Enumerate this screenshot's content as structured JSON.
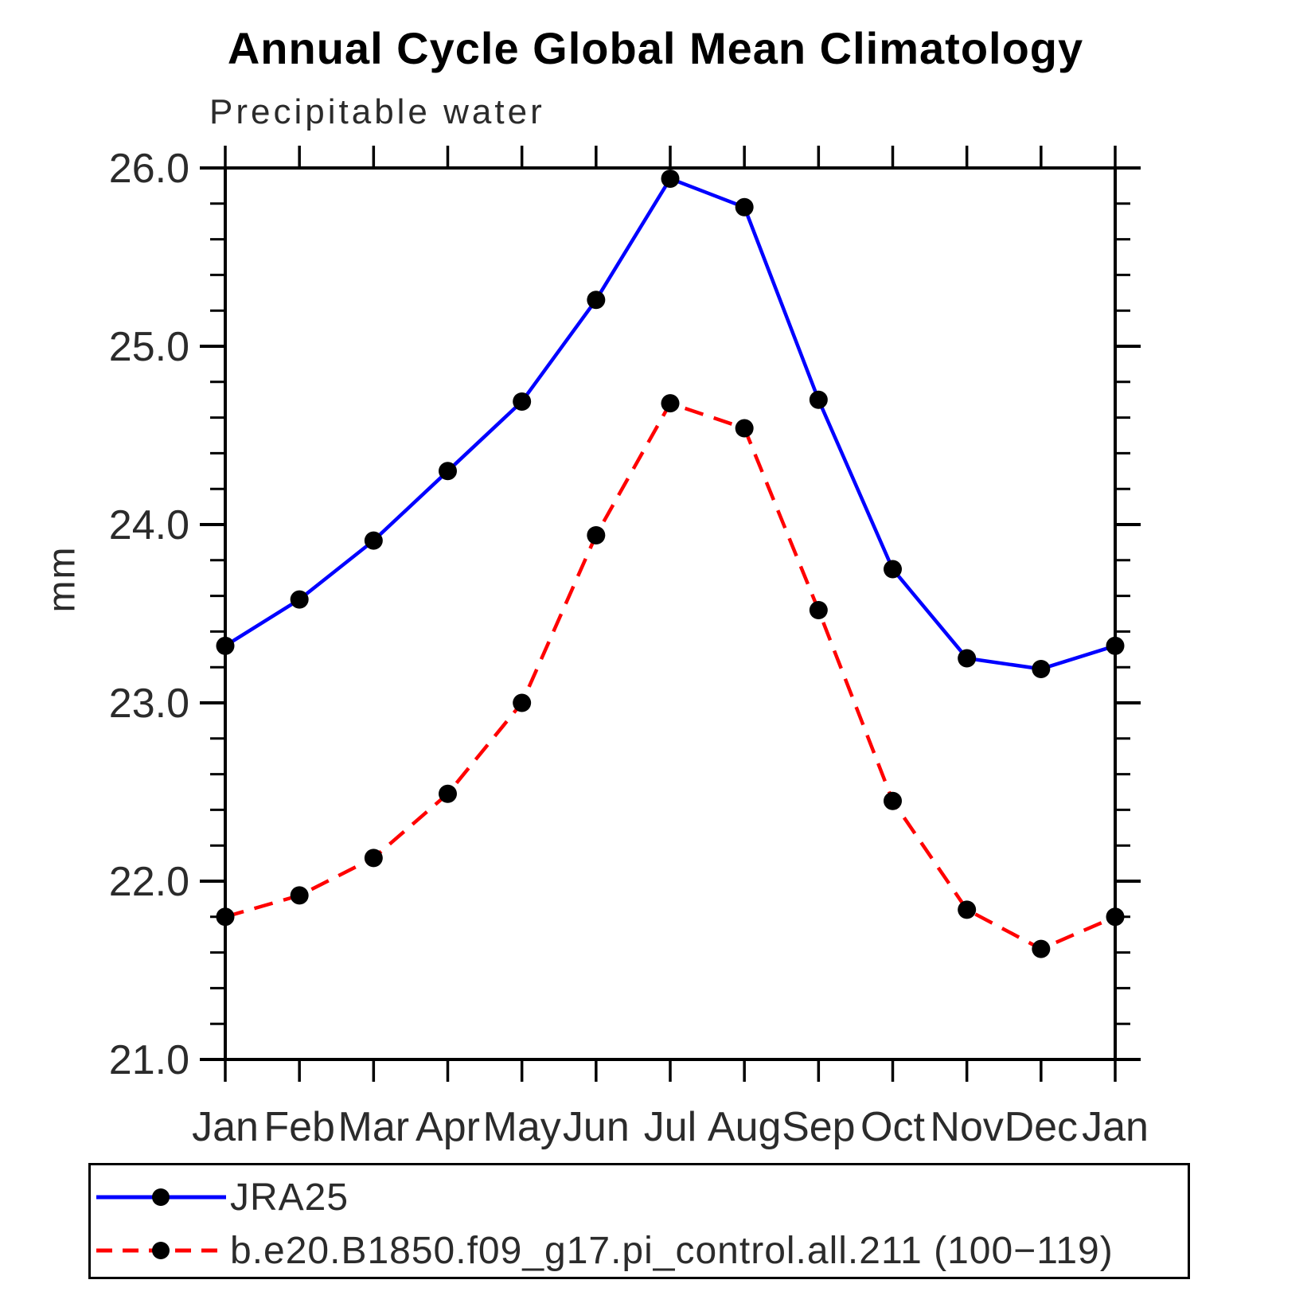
{
  "title": "Annual Cycle Global Mean Climatology",
  "subtitle": "Precipitable water",
  "y_axis_title": "mm",
  "colors": {
    "axis": "#000000",
    "marker": "#000000",
    "jra25_line": "#0000ff",
    "model_line": "#ff0000"
  },
  "chart_data": {
    "type": "line",
    "title": "Annual Cycle Global Mean Climatology",
    "subtitle": "Precipitable water",
    "ylabel": "mm",
    "x_tick_labels": [
      "Jan",
      "Feb",
      "Mar",
      "Apr",
      "May",
      "Jun",
      "Jul",
      "Aug",
      "Sep",
      "Oct",
      "Nov",
      "Dec",
      "Jan"
    ],
    "y_tick_labels": [
      "26.0",
      "25.0",
      "24.0",
      "23.0",
      "22.0",
      "21.0"
    ],
    "ylim": [
      21.0,
      26.0
    ],
    "y_major_interval": 1.0,
    "y_minor_interval": 0.2,
    "grid": false,
    "legend_position": "bottom-left-box",
    "series": [
      {
        "name": "JRA25",
        "color": "#0000ff",
        "line_style": "solid",
        "marker": "filled-circle",
        "values": [
          23.32,
          23.58,
          23.91,
          24.3,
          24.69,
          25.26,
          25.94,
          25.78,
          24.7,
          23.75,
          23.25,
          23.19,
          23.32
        ]
      },
      {
        "name": "b.e20.B1850.f09_g17.pi_control.all.211 (100−119)",
        "color": "#ff0000",
        "line_style": "dashed",
        "marker": "filled-circle",
        "values": [
          21.8,
          21.92,
          22.13,
          22.49,
          23.0,
          23.94,
          24.68,
          24.54,
          23.52,
          22.45,
          21.84,
          21.62,
          21.8
        ]
      }
    ]
  }
}
